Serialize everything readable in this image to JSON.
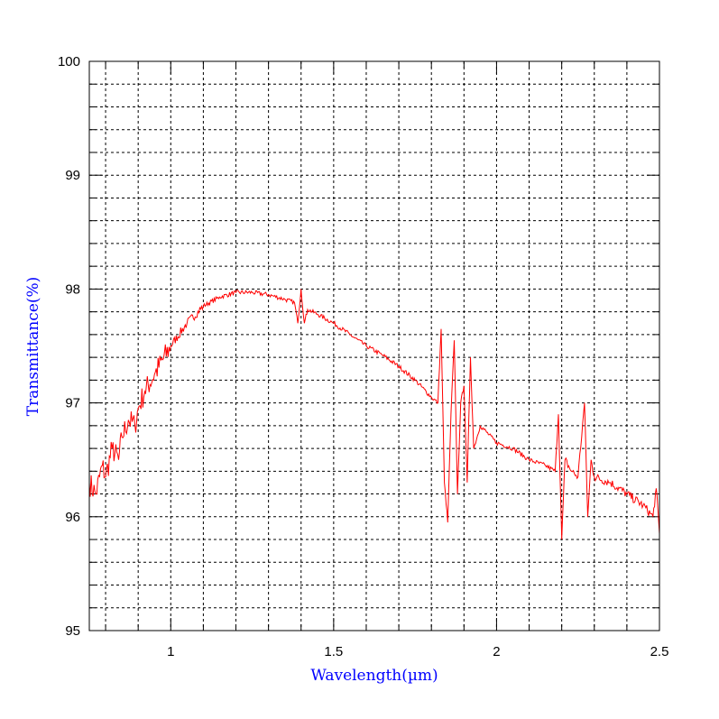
{
  "chart_data": {
    "type": "line",
    "title": "",
    "xlabel": "Wavelength(µm)",
    "ylabel": "Transmittance(%)",
    "xlim": [
      0.75,
      2.5
    ],
    "ylim": [
      95,
      100
    ],
    "x_ticks": [
      1,
      1.5,
      2,
      2.5
    ],
    "x_tick_labels": [
      "1",
      "1.5",
      "2",
      "2.5"
    ],
    "y_ticks": [
      95,
      96,
      97,
      98,
      99,
      100
    ],
    "y_tick_labels": [
      "95",
      "96",
      "97",
      "98",
      "99",
      "100"
    ],
    "x_minor_step": 0.1,
    "y_minor_step": 0.2,
    "grid": true,
    "legend": "none",
    "series": [
      {
        "name": "Transmittance",
        "color": "#ff0000",
        "x": [
          0.75,
          0.77,
          0.79,
          0.8,
          0.82,
          0.84,
          0.85,
          0.87,
          0.89,
          0.9,
          0.92,
          0.95,
          1.0,
          1.05,
          1.1,
          1.15,
          1.2,
          1.25,
          1.3,
          1.35,
          1.38,
          1.39,
          1.4,
          1.41,
          1.42,
          1.45,
          1.5,
          1.55,
          1.6,
          1.65,
          1.7,
          1.75,
          1.8,
          1.82,
          1.83,
          1.84,
          1.85,
          1.86,
          1.87,
          1.88,
          1.89,
          1.9,
          1.91,
          1.92,
          1.93,
          1.95,
          2.0,
          2.05,
          2.1,
          2.15,
          2.18,
          2.19,
          2.2,
          2.21,
          2.23,
          2.25,
          2.27,
          2.28,
          2.29,
          2.3,
          2.35,
          2.4,
          2.45,
          2.48,
          2.49,
          2.5
        ],
        "y": [
          96.3,
          96.2,
          96.45,
          96.35,
          96.6,
          96.5,
          96.7,
          96.85,
          96.8,
          96.95,
          97.1,
          97.25,
          97.5,
          97.7,
          97.85,
          97.93,
          97.97,
          97.97,
          97.95,
          97.91,
          97.88,
          97.7,
          98.0,
          97.7,
          97.82,
          97.78,
          97.7,
          97.6,
          97.5,
          97.42,
          97.32,
          97.2,
          97.05,
          97.0,
          97.65,
          96.3,
          95.95,
          96.9,
          97.55,
          96.2,
          97.0,
          97.15,
          96.3,
          97.4,
          96.6,
          96.8,
          96.65,
          96.6,
          96.5,
          96.45,
          96.4,
          96.9,
          95.8,
          96.5,
          96.4,
          96.35,
          97.0,
          96.0,
          96.5,
          96.35,
          96.3,
          96.2,
          96.1,
          96.0,
          96.25,
          95.85
        ]
      }
    ]
  }
}
